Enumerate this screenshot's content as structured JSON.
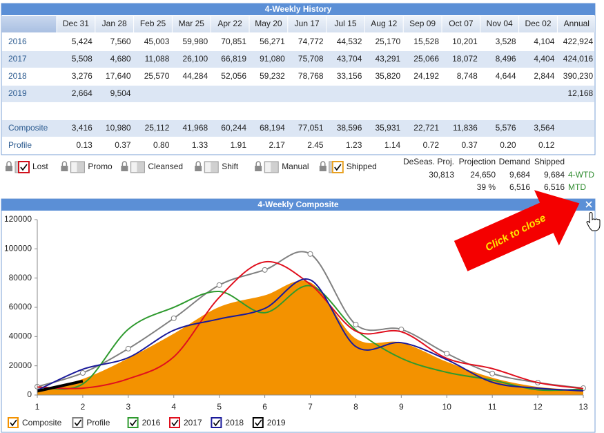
{
  "history": {
    "title": "4-Weekly History",
    "columns": [
      "Dec 31",
      "Jan 28",
      "Feb 25",
      "Mar 25",
      "Apr 22",
      "May 20",
      "Jun 17",
      "Jul 15",
      "Aug 12",
      "Sep 09",
      "Oct 07",
      "Nov 04",
      "Dec 02",
      "Annual"
    ],
    "rows": [
      {
        "label": "2016",
        "cells": [
          "5,424",
          "7,560",
          "45,003",
          "59,980",
          "70,851",
          "56,271",
          "74,772",
          "44,532",
          "25,170",
          "15,528",
          "10,201",
          "3,528",
          "4,104",
          "422,924"
        ]
      },
      {
        "label": "2017",
        "cells": [
          "5,508",
          "4,680",
          "11,088",
          "26,100",
          "66,819",
          "91,080",
          "75,708",
          "43,704",
          "43,291",
          "25,066",
          "18,072",
          "8,496",
          "4,404",
          "424,016"
        ]
      },
      {
        "label": "2018",
        "cells": [
          "3,276",
          "17,640",
          "25,570",
          "44,284",
          "52,056",
          "59,232",
          "78,768",
          "33,156",
          "35,820",
          "24,192",
          "8,748",
          "4,644",
          "2,844",
          "390,230"
        ]
      },
      {
        "label": "2019",
        "cells": [
          "2,664",
          "9,504",
          null,
          null,
          null,
          null,
          null,
          null,
          null,
          null,
          null,
          null,
          null,
          "12,168"
        ]
      },
      {
        "label": "Composite",
        "cells": [
          "3,416",
          "10,980",
          "25,112",
          "41,968",
          "60,244",
          "68,194",
          "77,051",
          "38,596",
          "35,931",
          "22,721",
          "11,836",
          "5,576",
          "3,564",
          null
        ]
      },
      {
        "label": "Profile",
        "cells": [
          "0.13",
          "0.37",
          "0.80",
          "1.33",
          "1.91",
          "2.17",
          "2.45",
          "1.23",
          "1.14",
          "0.72",
          "0.37",
          "0.20",
          "0.12",
          null
        ]
      }
    ]
  },
  "toggles": [
    {
      "label": "Lost",
      "checked": true,
      "color": "#d0101c"
    },
    {
      "label": "Promo",
      "checked": false,
      "color": "#9a9a9a"
    },
    {
      "label": "Cleansed",
      "checked": false,
      "color": "#9a9a9a"
    },
    {
      "label": "Shift",
      "checked": false,
      "color": "#9a9a9a"
    },
    {
      "label": "Manual",
      "checked": false,
      "color": "#9a9a9a"
    },
    {
      "label": "Shipped",
      "checked": true,
      "color": "#e8a020"
    }
  ],
  "summary": {
    "headers": [
      "DeSeas. Proj.",
      "Projection",
      "Demand",
      "Shipped"
    ],
    "rows": [
      {
        "cells": [
          "30,813",
          "24,650",
          "9,684",
          "9,684"
        ],
        "label": "4-WTD"
      },
      {
        "cells": [
          null,
          "39 %",
          "6,516",
          "6,516"
        ],
        "label": "MTD"
      }
    ]
  },
  "chart_data": {
    "type": "line",
    "title": "4-Weekly Composite",
    "annotation": "Click to close",
    "x": [
      1,
      2,
      3,
      4,
      5,
      6,
      7,
      8,
      9,
      10,
      11,
      12,
      13
    ],
    "xlim": [
      1,
      13
    ],
    "xticks": [
      1,
      2,
      3,
      4,
      5,
      6,
      7,
      8,
      9,
      10,
      11,
      12,
      13
    ],
    "ylim": [
      0,
      120000
    ],
    "yticks": [
      0,
      20000,
      40000,
      60000,
      80000,
      100000,
      120000
    ],
    "series": [
      {
        "name": "Composite",
        "color": "#f39200",
        "kind": "area",
        "values": [
          3416,
          10980,
          25112,
          41968,
          60244,
          68194,
          77051,
          38596,
          35931,
          22721,
          11836,
          5576,
          3564
        ]
      },
      {
        "name": "Profile",
        "color": "#808080",
        "markers": true,
        "values": [
          5700,
          15100,
          31700,
          52500,
          75200,
          85600,
          96500,
          48200,
          44900,
          28400,
          14700,
          8500,
          4700
        ]
      },
      {
        "name": "2016",
        "color": "#2e9a2e",
        "values": [
          5424,
          7560,
          45003,
          59980,
          70851,
          56271,
          74772,
          44532,
          25170,
          15528,
          10201,
          3528,
          4104
        ]
      },
      {
        "name": "2017",
        "color": "#e0101e",
        "values": [
          5508,
          4680,
          11088,
          26100,
          66819,
          91080,
          75708,
          43704,
          43291,
          25066,
          18072,
          8496,
          4404
        ]
      },
      {
        "name": "2018",
        "color": "#1a1a9a",
        "values": [
          3276,
          17640,
          25570,
          44284,
          52056,
          59232,
          78768,
          33156,
          35820,
          24192,
          8748,
          4644,
          2844
        ]
      },
      {
        "name": "2019",
        "color": "#000000",
        "width": 4,
        "values": [
          2664,
          9504,
          null,
          null,
          null,
          null,
          null,
          null,
          null,
          null,
          null,
          null,
          null
        ]
      }
    ]
  }
}
